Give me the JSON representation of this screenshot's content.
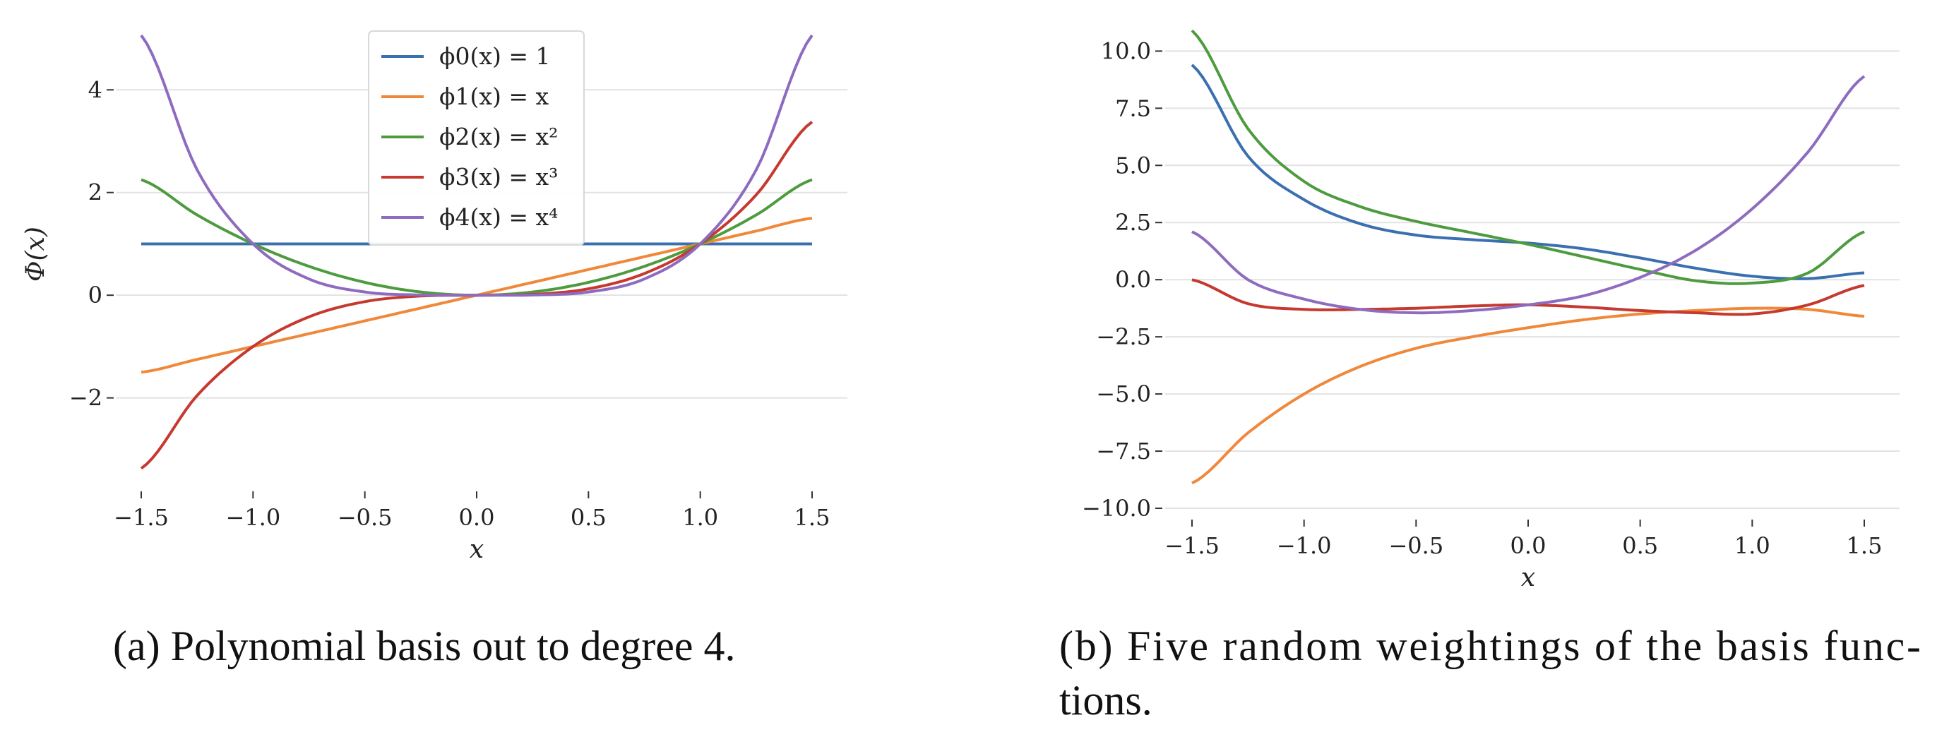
{
  "captions": {
    "a": "(a) Polynomial basis out to degree 4.",
    "b_line1": "(b) Five random weightings of the basis func-",
    "b_line2": "tions."
  },
  "chart_data": [
    {
      "type": "line",
      "xlabel": "x",
      "ylabel": "Φ(x)",
      "xlim": [
        -1.5,
        1.5
      ],
      "ylim": [
        -3.6,
        5.2
      ],
      "xticks": [
        -1.5,
        -1.0,
        -0.5,
        0.0,
        0.5,
        1.0,
        1.5
      ],
      "xtick_labels": [
        "−1.5",
        "−1.0",
        "−0.5",
        "0.0",
        "0.5",
        "1.0",
        "1.5"
      ],
      "yticks": [
        -2,
        0,
        2,
        4
      ],
      "ytick_labels": [
        "−2",
        "0",
        "2",
        "4"
      ],
      "grid": "horizontal",
      "legend": "top-center",
      "series": [
        {
          "name": "ϕ0(x) = 1",
          "color": "#3a6fb0",
          "x": [
            -1.5,
            -1.25,
            -1.0,
            -0.75,
            -0.5,
            -0.25,
            0.0,
            0.25,
            0.5,
            0.75,
            1.0,
            1.25,
            1.5
          ],
          "y": [
            1,
            1,
            1,
            1,
            1,
            1,
            1,
            1,
            1,
            1,
            1,
            1,
            1
          ]
        },
        {
          "name": "ϕ1(x) = x",
          "color": "#f0883a",
          "x": [
            -1.5,
            -1.25,
            -1.0,
            -0.75,
            -0.5,
            -0.25,
            0.0,
            0.25,
            0.5,
            0.75,
            1.0,
            1.25,
            1.5
          ],
          "y": [
            -1.5,
            -1.25,
            -1.0,
            -0.75,
            -0.5,
            -0.25,
            0.0,
            0.25,
            0.5,
            0.75,
            1.0,
            1.25,
            1.5
          ]
        },
        {
          "name": "ϕ2(x) = x²",
          "color": "#4e9b3f",
          "x": [
            -1.5,
            -1.25,
            -1.0,
            -0.75,
            -0.5,
            -0.25,
            0.0,
            0.25,
            0.5,
            0.75,
            1.0,
            1.25,
            1.5
          ],
          "y": [
            2.25,
            1.5625,
            1.0,
            0.5625,
            0.25,
            0.0625,
            0.0,
            0.0625,
            0.25,
            0.5625,
            1.0,
            1.5625,
            2.25
          ]
        },
        {
          "name": "ϕ3(x) = x³",
          "color": "#c5392f",
          "x": [
            -1.5,
            -1.25,
            -1.0,
            -0.75,
            -0.5,
            -0.25,
            0.0,
            0.25,
            0.5,
            0.75,
            1.0,
            1.25,
            1.5
          ],
          "y": [
            -3.375,
            -1.953,
            -1.0,
            -0.422,
            -0.125,
            -0.016,
            0.0,
            0.016,
            0.125,
            0.422,
            1.0,
            1.953,
            3.375
          ]
        },
        {
          "name": "ϕ4(x) = x⁴",
          "color": "#8e6bbf",
          "x": [
            -1.5,
            -1.25,
            -1.0,
            -0.75,
            -0.5,
            -0.25,
            0.0,
            0.25,
            0.5,
            0.75,
            1.0,
            1.25,
            1.5
          ],
          "y": [
            5.0625,
            2.441,
            1.0,
            0.316,
            0.0625,
            0.0039,
            0.0,
            0.0039,
            0.0625,
            0.316,
            1.0,
            2.441,
            5.0625
          ]
        }
      ]
    },
    {
      "type": "line",
      "xlabel": "x",
      "ylabel": "",
      "xlim": [
        -1.5,
        1.5
      ],
      "ylim": [
        -10.0,
        11.0
      ],
      "xticks": [
        -1.5,
        -1.0,
        -0.5,
        0.0,
        0.5,
        1.0,
        1.5
      ],
      "xtick_labels": [
        "−1.5",
        "−1.0",
        "−0.5",
        "0.0",
        "0.5",
        "1.0",
        "1.5"
      ],
      "yticks": [
        -10.0,
        -7.5,
        -5.0,
        -2.5,
        0.0,
        2.5,
        5.0,
        7.5,
        10.0
      ],
      "ytick_labels": [
        "−10.0",
        "−7.5",
        "−5.0",
        "−2.5",
        "0.0",
        "2.5",
        "5.0",
        "7.5",
        "10.0"
      ],
      "grid": "horizontal",
      "legend": "none",
      "series": [
        {
          "color": "#3a6fb0",
          "x": [
            -1.5,
            -1.25,
            -1.0,
            -0.75,
            -0.5,
            -0.25,
            0.0,
            0.25,
            0.5,
            0.75,
            1.0,
            1.25,
            1.5
          ],
          "y": [
            9.4,
            5.4,
            3.5,
            2.45,
            1.95,
            1.75,
            1.6,
            1.35,
            0.95,
            0.5,
            0.15,
            0.05,
            0.3
          ]
        },
        {
          "color": "#f0883a",
          "x": [
            -1.5,
            -1.25,
            -1.0,
            -0.75,
            -0.5,
            -0.25,
            0.0,
            0.25,
            0.5,
            0.75,
            1.0,
            1.25,
            1.5
          ],
          "y": [
            -8.9,
            -6.7,
            -5.0,
            -3.8,
            -3.0,
            -2.5,
            -2.1,
            -1.75,
            -1.5,
            -1.35,
            -1.25,
            -1.3,
            -1.6
          ]
        },
        {
          "color": "#4e9b3f",
          "x": [
            -1.5,
            -1.25,
            -1.0,
            -0.75,
            -0.5,
            -0.25,
            0.0,
            0.25,
            0.5,
            0.75,
            1.0,
            1.25,
            1.5
          ],
          "y": [
            10.9,
            6.6,
            4.3,
            3.2,
            2.55,
            2.05,
            1.55,
            1.0,
            0.45,
            -0.05,
            -0.15,
            0.3,
            2.1
          ]
        },
        {
          "color": "#c5392f",
          "x": [
            -1.5,
            -1.25,
            -1.0,
            -0.75,
            -0.5,
            -0.25,
            0.0,
            0.25,
            0.5,
            0.75,
            1.0,
            1.25,
            1.5
          ],
          "y": [
            0.0,
            -1.05,
            -1.3,
            -1.3,
            -1.25,
            -1.15,
            -1.1,
            -1.2,
            -1.35,
            -1.45,
            -1.5,
            -1.1,
            -0.25
          ]
        },
        {
          "color": "#8e6bbf",
          "x": [
            -1.5,
            -1.25,
            -1.0,
            -0.75,
            -0.5,
            -0.25,
            0.0,
            0.25,
            0.5,
            0.75,
            1.0,
            1.25,
            1.5
          ],
          "y": [
            2.1,
            0.0,
            -0.85,
            -1.3,
            -1.45,
            -1.35,
            -1.1,
            -0.7,
            0.1,
            1.3,
            3.1,
            5.6,
            8.9
          ]
        }
      ]
    }
  ]
}
